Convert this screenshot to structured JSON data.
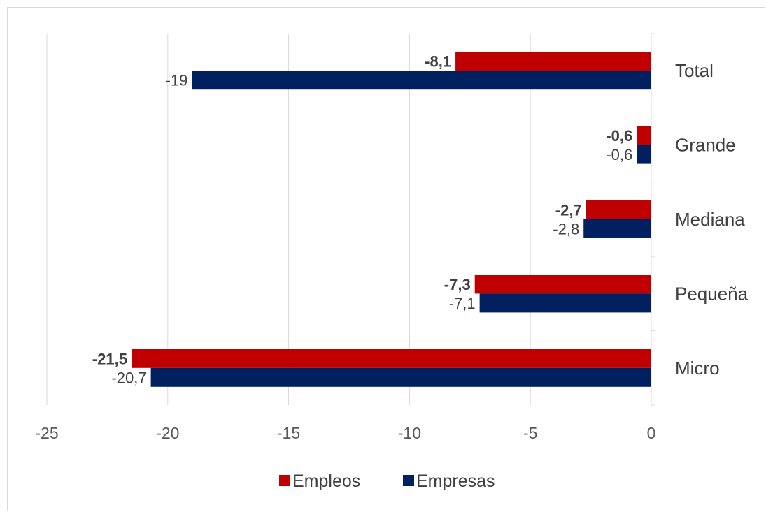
{
  "chart_data": {
    "type": "bar",
    "orientation": "horizontal",
    "categories": [
      "Total",
      "Grande",
      "Mediana",
      "Pequeña",
      "Micro"
    ],
    "series": [
      {
        "name": "Empleos",
        "color": "#c00000",
        "values": [
          -8.1,
          -0.6,
          -2.7,
          -7.3,
          -21.5
        ],
        "labels": [
          "-8,1",
          "-0,6",
          "-2,7",
          "-7,3",
          "-21,5"
        ]
      },
      {
        "name": "Empresas",
        "color": "#002060",
        "values": [
          -19,
          -0.6,
          -2.8,
          -7.1,
          -20.7
        ],
        "labels": [
          "-19",
          "-0,6",
          "-2,8",
          "-7,1",
          "-20,7"
        ]
      }
    ],
    "xlim": [
      -25,
      0
    ],
    "x_ticks": [
      -25,
      -20,
      -15,
      -10,
      -5,
      0
    ],
    "x_tick_labels": [
      "-25",
      "-20",
      "-15",
      "-10",
      "-5",
      "0"
    ],
    "grid": "vertical",
    "legend": "bottom"
  }
}
